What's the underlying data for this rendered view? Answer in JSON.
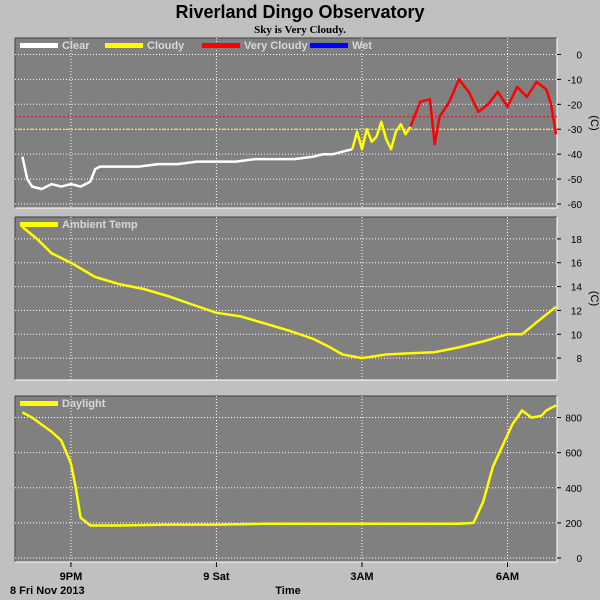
{
  "title": "Riverland Dingo Observatory",
  "subtitle": "Sky is Very Cloudy.",
  "x_axis": {
    "label": "Time",
    "start_label": "8 Fri Nov 2013",
    "ticks": [
      {
        "label": "9PM",
        "t": 1
      },
      {
        "label": "9 Sat",
        "t": 4
      },
      {
        "label": "3AM",
        "t": 7
      },
      {
        "label": "6AM",
        "t": 10
      }
    ],
    "range_hours_from_8pm": [
      -0.05,
      11.0
    ]
  },
  "colors": {
    "plot_bg": "#808080",
    "page_bg": "#c0c0c0",
    "grid": "#ffffff",
    "clear": "#ffffff",
    "cloudy": "#ffff00",
    "very_cloudy": "#ff0000",
    "wet": "#0000ff",
    "ambient": "#ffff00",
    "daylight": "#ffff00"
  },
  "chart_data": [
    {
      "type": "line",
      "ylabel": "(C)",
      "ylim": [
        -60,
        5
      ],
      "yticks": [
        0,
        -10,
        -20,
        -30,
        -40,
        -50,
        -60
      ],
      "grid": true,
      "legend": {
        "placement": "top-left",
        "entries": [
          "Clear",
          "Cloudy",
          "Very Cloudy",
          "Wet"
        ]
      },
      "thresholds": [
        {
          "value": -25,
          "color": "#ff0000"
        },
        {
          "value": -30,
          "color": "#ffff00"
        }
      ],
      "series": [
        {
          "name": "Clear",
          "color": "#ffffff",
          "x": [
            0,
            0.1,
            0.2,
            0.4,
            0.6,
            0.8,
            1.0,
            1.2,
            1.4,
            1.5,
            1.6,
            1.8,
            2.0,
            2.4,
            2.8,
            3.2,
            3.6,
            4.0,
            4.4,
            4.8,
            5.2,
            5.6,
            6.0,
            6.2,
            6.4,
            6.6,
            6.8
          ],
          "y": [
            -41,
            -50,
            -53,
            -54,
            -52,
            -53,
            -52,
            -53,
            -51,
            -46,
            -45,
            -45,
            -45,
            -45,
            -44,
            -44,
            -43,
            -43,
            -43,
            -42,
            -42,
            -42,
            -41,
            -40,
            -40,
            -39,
            -38
          ]
        },
        {
          "name": "Cloudy",
          "color": "#ffff00",
          "x": [
            6.8,
            6.9,
            7.0,
            7.1,
            7.2,
            7.3,
            7.4,
            7.5,
            7.6,
            7.7,
            7.8,
            7.9,
            8.0
          ],
          "y": [
            -38,
            -31,
            -38,
            -30,
            -35,
            -33,
            -27,
            -34,
            -38,
            -31,
            -28,
            -32,
            -29
          ]
        },
        {
          "name": "Very Cloudy",
          "color": "#ff0000",
          "x": [
            8.0,
            8.2,
            8.4,
            8.5,
            8.6,
            8.8,
            9.0,
            9.2,
            9.4,
            9.6,
            9.8,
            10.0,
            10.2,
            10.4,
            10.6,
            10.8,
            10.9,
            11.0
          ],
          "y": [
            -29,
            -19,
            -18,
            -36,
            -25,
            -19,
            -10,
            -15,
            -23,
            -20,
            -15,
            -21,
            -13,
            -17,
            -11,
            -14,
            -20,
            -32
          ]
        }
      ]
    },
    {
      "type": "line",
      "ylabel": "(C)",
      "ylim": [
        6.5,
        19.5
      ],
      "yticks": [
        8,
        10,
        12,
        14,
        16,
        18
      ],
      "grid": true,
      "legend": {
        "placement": "top-left",
        "entries": [
          "Ambient Temp"
        ]
      },
      "series": [
        {
          "name": "Ambient Temp",
          "color": "#ffff00",
          "x": [
            0,
            0.3,
            0.6,
            1.0,
            1.5,
            2.0,
            2.5,
            3.0,
            3.5,
            4.0,
            4.5,
            5.0,
            5.5,
            6.0,
            6.3,
            6.6,
            7.0,
            7.5,
            8.0,
            8.5,
            9.0,
            9.5,
            10.0,
            10.3,
            10.6,
            11.0
          ],
          "y": [
            19.0,
            18.0,
            16.8,
            16.0,
            14.8,
            14.2,
            13.8,
            13.2,
            12.5,
            11.8,
            11.5,
            10.9,
            10.3,
            9.6,
            9.0,
            8.3,
            8.0,
            8.3,
            8.4,
            8.5,
            8.9,
            9.4,
            10.0,
            10.0,
            11.0,
            12.3
          ]
        }
      ]
    },
    {
      "type": "line",
      "ylabel": "",
      "ylim": [
        0,
        900
      ],
      "yticks": [
        0,
        200,
        400,
        600,
        800
      ],
      "grid": true,
      "legend": {
        "placement": "top-left",
        "entries": [
          "Daylight"
        ]
      },
      "series": [
        {
          "name": "Daylight",
          "color": "#ffff00",
          "x": [
            0,
            0.2,
            0.4,
            0.6,
            0.8,
            1.0,
            1.1,
            1.2,
            1.4,
            2.0,
            3.0,
            4.0,
            5.0,
            6.0,
            7.0,
            8.0,
            9.0,
            9.3,
            9.5,
            9.7,
            9.9,
            10.1,
            10.3,
            10.5,
            10.7,
            10.8,
            11.0
          ],
          "y": [
            830,
            800,
            760,
            720,
            670,
            540,
            400,
            230,
            185,
            185,
            190,
            190,
            195,
            195,
            195,
            195,
            195,
            200,
            320,
            520,
            640,
            760,
            840,
            800,
            810,
            840,
            870
          ]
        }
      ]
    }
  ]
}
